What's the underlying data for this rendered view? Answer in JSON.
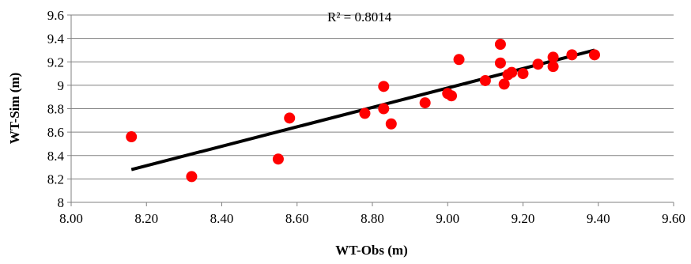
{
  "chart_data": {
    "type": "scatter",
    "xlabel": "WT-Obs (m)",
    "ylabel": "WT-Sim (m)",
    "annotation": "R² = 0.8014",
    "xlim": [
      8.0,
      9.6
    ],
    "ylim": [
      8.0,
      9.6
    ],
    "x_ticks": [
      "8.00",
      "8.20",
      "8.40",
      "8.60",
      "8.80",
      "9.00",
      "9.20",
      "9.40",
      "9.60"
    ],
    "y_ticks": [
      "8",
      "8.2",
      "8.4",
      "8.6",
      "8.8",
      "9",
      "9.2",
      "9.4",
      "9.6"
    ],
    "grid": "horizontal",
    "marker_color": "#ff0000",
    "trendline_color": "#000000",
    "trendline": {
      "x": [
        8.16,
        9.39
      ],
      "y": [
        8.28,
        9.3
      ]
    },
    "points": [
      {
        "x": 8.16,
        "y": 8.56
      },
      {
        "x": 8.32,
        "y": 8.22
      },
      {
        "x": 8.55,
        "y": 8.37
      },
      {
        "x": 8.58,
        "y": 8.72
      },
      {
        "x": 8.78,
        "y": 8.76
      },
      {
        "x": 8.83,
        "y": 8.99
      },
      {
        "x": 8.83,
        "y": 8.8
      },
      {
        "x": 8.85,
        "y": 8.67
      },
      {
        "x": 8.94,
        "y": 8.85
      },
      {
        "x": 9.0,
        "y": 8.93
      },
      {
        "x": 9.01,
        "y": 8.91
      },
      {
        "x": 9.03,
        "y": 9.22
      },
      {
        "x": 9.1,
        "y": 9.04
      },
      {
        "x": 9.14,
        "y": 9.35
      },
      {
        "x": 9.14,
        "y": 9.19
      },
      {
        "x": 9.15,
        "y": 9.01
      },
      {
        "x": 9.16,
        "y": 9.09
      },
      {
        "x": 9.17,
        "y": 9.11
      },
      {
        "x": 9.2,
        "y": 9.1
      },
      {
        "x": 9.24,
        "y": 9.18
      },
      {
        "x": 9.28,
        "y": 9.24
      },
      {
        "x": 9.28,
        "y": 9.16
      },
      {
        "x": 9.33,
        "y": 9.26
      },
      {
        "x": 9.39,
        "y": 9.26
      }
    ]
  }
}
